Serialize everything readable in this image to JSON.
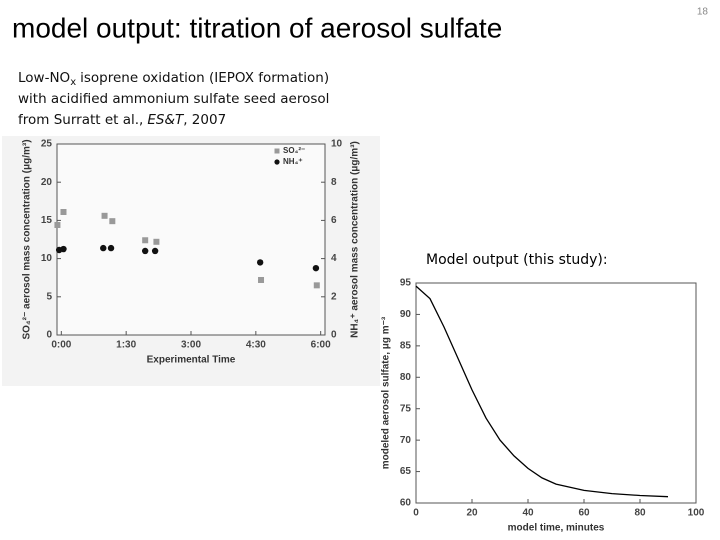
{
  "slide": {
    "title": "model output: titration of aerosol sulfate",
    "page_number": "18",
    "caption": {
      "line1": [
        "Low-NO",
        "x",
        "isoprene oxidation (IEPOX formation)"
      ],
      "line2": "with acidified ammonium sulfate seed aerosol",
      "line3": [
        "from Surratt et al.,",
        "ES&T",
        ", 2007"
      ]
    }
  },
  "chart_data": [
    {
      "type": "scatter",
      "xlabel": "Experimental Time",
      "ylabel": "SO₄²⁻ aerosol mass concentration (μg/m³)",
      "y2label": "NH₄⁺ aerosol mass concentration (μg/m³)",
      "xlim": [
        -0.1,
        6.1
      ],
      "xticks": [
        {
          "value": 0,
          "label": "0:00"
        },
        {
          "value": 1.5,
          "label": "1:30"
        },
        {
          "value": 3,
          "label": "3:00"
        },
        {
          "value": 4.5,
          "label": "4:30"
        },
        {
          "value": 6,
          "label": "6:00"
        }
      ],
      "ylim": [
        0,
        25
      ],
      "yticks": [
        0,
        5,
        10,
        15,
        20,
        25
      ],
      "y2lim": [
        0,
        10
      ],
      "y2ticks": [
        0,
        2,
        4,
        6,
        8,
        10
      ],
      "legend": "upper right",
      "series": [
        {
          "name": "SO₄²⁻",
          "color": "#999999",
          "marker": "square",
          "x": [
            -0.09,
            0.05,
            1.0,
            1.18,
            1.94,
            2.2,
            4.62,
            5.91
          ],
          "values": [
            14.4,
            16.1,
            15.6,
            14.9,
            12.4,
            12.2,
            7.2,
            6.5
          ]
        },
        {
          "name": "NH₄⁺",
          "color": "#111111",
          "marker": "circle",
          "axis": "y2",
          "x": [
            -0.05,
            0.05,
            0.97,
            1.15,
            1.94,
            2.17,
            4.6,
            5.89
          ],
          "values": [
            4.45,
            4.5,
            4.55,
            4.55,
            4.4,
            4.4,
            3.8,
            3.5
          ]
        }
      ]
    },
    {
      "type": "line",
      "title": "Model output (this study):",
      "xlabel": "model time, minutes",
      "ylabel": "modeled aerosol sulfate, μg m⁻³",
      "xlim": [
        0,
        100
      ],
      "xticks": [
        0,
        20,
        40,
        60,
        80,
        100
      ],
      "ylim": [
        60,
        95
      ],
      "yticks": [
        60,
        65,
        70,
        75,
        80,
        85,
        90,
        95
      ],
      "series": [
        {
          "color": "#000000",
          "x": [
            0,
            5,
            10,
            15,
            20,
            25,
            30,
            35,
            40,
            45,
            50,
            60,
            70,
            80,
            90
          ],
          "values": [
            94.5,
            92.5,
            88,
            83,
            78,
            73.5,
            70,
            67.5,
            65.5,
            64,
            63,
            62,
            61.5,
            61.2,
            61
          ]
        }
      ]
    }
  ]
}
